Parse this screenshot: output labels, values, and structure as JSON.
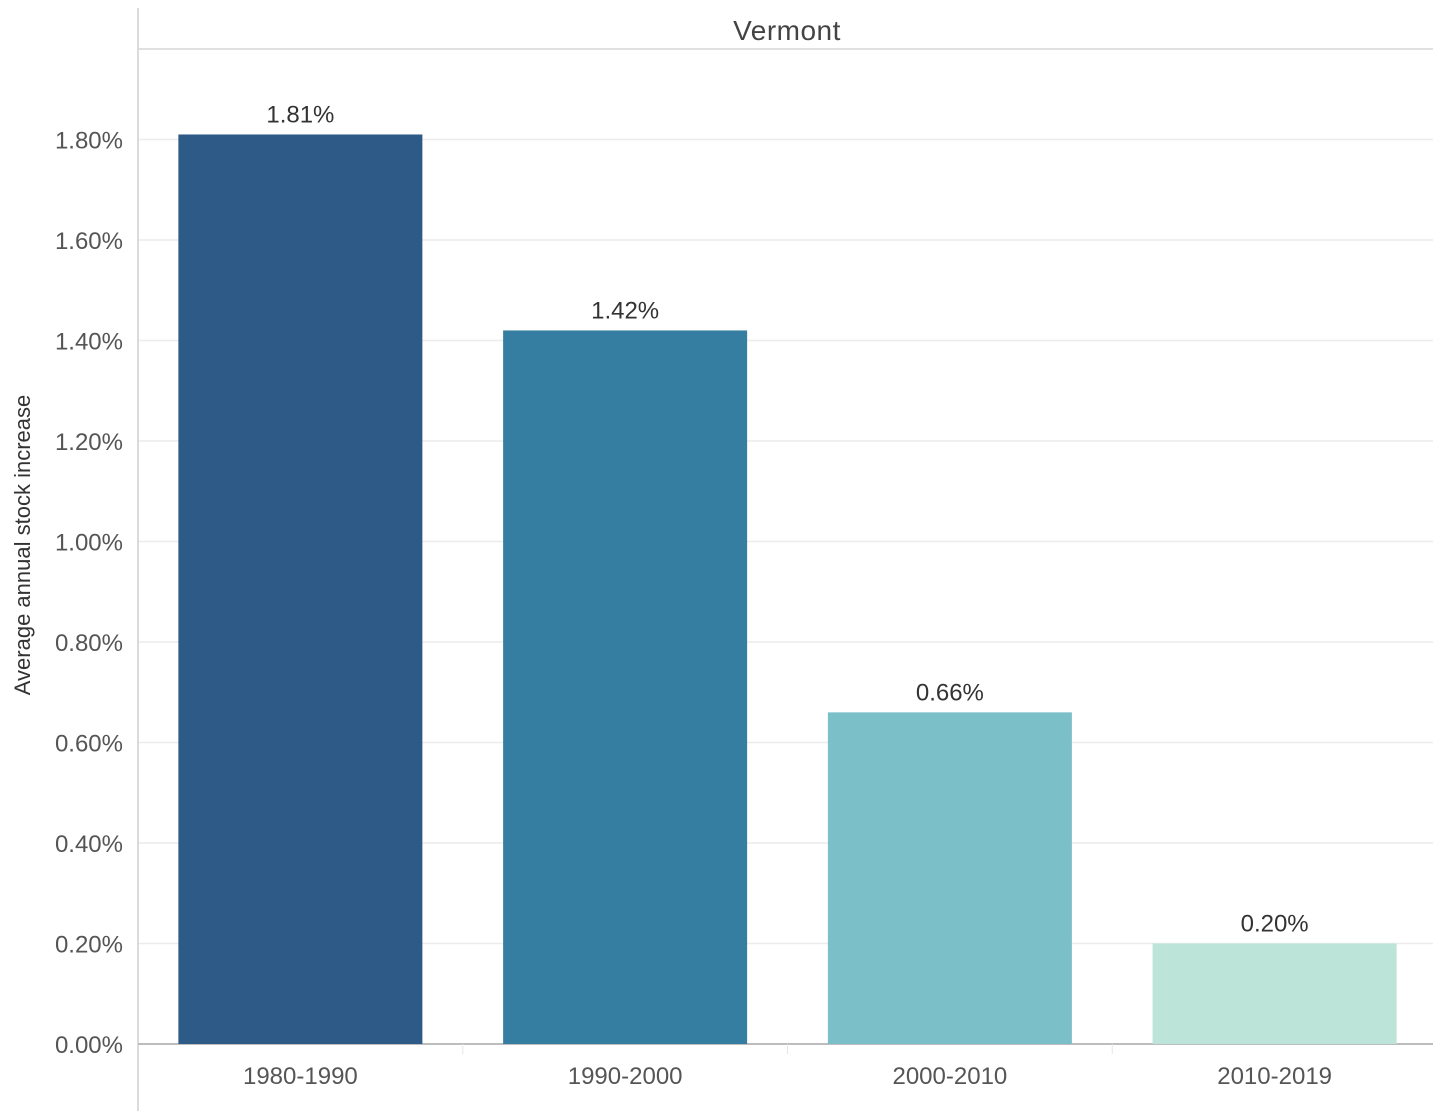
{
  "chart_data": {
    "type": "bar",
    "title": "Vermont",
    "ylabel": "Average annual stock increase",
    "xlabel": "",
    "categories": [
      "1980-1990",
      "1990-2000",
      "2000-2010",
      "2010-2019"
    ],
    "values": [
      1.81,
      1.42,
      0.66,
      0.2
    ],
    "data_labels": [
      "1.81%",
      "1.42%",
      "0.66%",
      "0.20%"
    ],
    "colors": [
      "#2e5a87",
      "#357ea1",
      "#7bbfc8",
      "#bde4d8"
    ],
    "ylim": [
      0,
      1.9
    ],
    "yticks": [
      0,
      0.2,
      0.4,
      0.6,
      0.8,
      1.0,
      1.2,
      1.4,
      1.6,
      1.8
    ],
    "ytick_labels": [
      "0.00%",
      "0.20%",
      "0.40%",
      "0.60%",
      "0.80%",
      "1.00%",
      "1.20%",
      "1.40%",
      "1.60%",
      "1.80%"
    ],
    "grid": true,
    "legend": "none"
  }
}
